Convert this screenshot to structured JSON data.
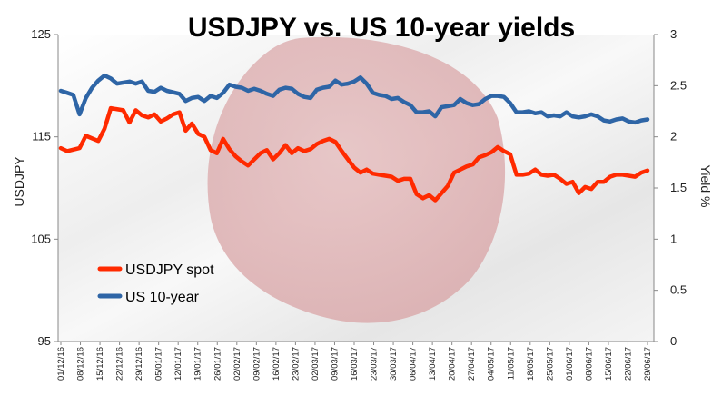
{
  "chart_data": {
    "type": "line",
    "title": "USDJPY vs. US 10-year yields",
    "ylabel_left": "USDJPY",
    "ylabel_right": "Yield %",
    "ylim_left": [
      95,
      125
    ],
    "ylim_right": [
      0,
      3
    ],
    "yticks_left": [
      "95",
      "105",
      "115",
      "125"
    ],
    "yticks_right": [
      "0",
      "0.5",
      "1",
      "1.5",
      "2",
      "2.5",
      "3"
    ],
    "x_tick_labels": [
      "01/12/16",
      "08/12/16",
      "15/12/16",
      "22/12/16",
      "29/12/16",
      "05/01/17",
      "12/01/17",
      "19/01/17",
      "26/01/17",
      "02/02/17",
      "09/02/17",
      "16/02/17",
      "23/02/17",
      "02/03/17",
      "09/03/17",
      "16/03/17",
      "23/03/17",
      "30/03/17",
      "06/04/17",
      "13/04/17",
      "20/04/17",
      "27/04/17",
      "04/05/17",
      "11/05/17",
      "18/05/17",
      "25/05/17",
      "01/06/17",
      "08/06/17",
      "15/06/17",
      "22/06/17",
      "29/06/17"
    ],
    "legend_position": "bottom-left",
    "grid": false,
    "series": [
      {
        "name": "USDJPY spot",
        "axis": "left",
        "color": "#ff2a00",
        "points": [
          [
            0,
            113.9
          ],
          [
            1,
            113.6
          ],
          [
            3,
            113.9
          ],
          [
            4,
            115.1
          ],
          [
            6,
            114.6
          ],
          [
            7,
            115.8
          ],
          [
            8,
            117.8
          ],
          [
            10,
            117.6
          ],
          [
            11,
            116.4
          ],
          [
            12,
            117.6
          ],
          [
            13,
            117.1
          ],
          [
            14,
            116.9
          ],
          [
            15,
            117.2
          ],
          [
            16,
            116.5
          ],
          [
            17,
            116.8
          ],
          [
            18,
            117.2
          ],
          [
            19,
            117.4
          ],
          [
            20,
            115.6
          ],
          [
            21,
            116.3
          ],
          [
            22,
            115.3
          ],
          [
            23,
            115.0
          ],
          [
            24,
            113.7
          ],
          [
            25,
            113.4
          ],
          [
            26,
            114.8
          ],
          [
            27,
            113.8
          ],
          [
            28,
            113.1
          ],
          [
            29,
            112.6
          ],
          [
            30,
            112.2
          ],
          [
            32,
            113.4
          ],
          [
            33,
            113.7
          ],
          [
            34,
            112.8
          ],
          [
            35,
            113.4
          ],
          [
            36,
            114.2
          ],
          [
            37,
            113.4
          ],
          [
            38,
            113.9
          ],
          [
            39,
            113.6
          ],
          [
            40,
            113.8
          ],
          [
            41,
            114.3
          ],
          [
            42,
            114.6
          ],
          [
            43,
            114.8
          ],
          [
            44,
            114.5
          ],
          [
            45,
            113.6
          ],
          [
            46,
            112.8
          ],
          [
            47,
            112.0
          ],
          [
            48,
            111.5
          ],
          [
            49,
            111.8
          ],
          [
            50,
            111.4
          ],
          [
            51,
            111.3
          ],
          [
            53,
            111.1
          ],
          [
            54,
            110.7
          ],
          [
            55,
            110.9
          ],
          [
            56,
            110.9
          ],
          [
            57,
            109.4
          ],
          [
            58,
            109.0
          ],
          [
            59,
            109.3
          ],
          [
            60,
            108.8
          ],
          [
            61,
            109.5
          ],
          [
            62,
            110.2
          ],
          [
            63,
            111.5
          ],
          [
            64,
            111.8
          ],
          [
            65,
            112.1
          ],
          [
            66,
            112.3
          ],
          [
            67,
            113.0
          ],
          [
            68,
            113.2
          ],
          [
            69,
            113.5
          ],
          [
            70,
            114.0
          ],
          [
            71,
            113.6
          ],
          [
            72,
            113.3
          ],
          [
            73,
            111.3
          ],
          [
            74,
            111.3
          ],
          [
            75,
            111.4
          ],
          [
            76,
            111.8
          ],
          [
            77,
            111.3
          ],
          [
            78,
            111.2
          ],
          [
            79,
            111.3
          ],
          [
            80,
            110.9
          ],
          [
            81,
            110.4
          ],
          [
            82,
            110.6
          ],
          [
            83,
            109.5
          ],
          [
            84,
            110.1
          ],
          [
            85,
            109.9
          ],
          [
            86,
            110.6
          ],
          [
            87,
            110.6
          ],
          [
            88,
            111.1
          ],
          [
            89,
            111.3
          ],
          [
            90,
            111.3
          ],
          [
            92,
            111.1
          ],
          [
            93,
            111.5
          ],
          [
            94,
            111.7
          ]
        ]
      },
      {
        "name": "US 10-year",
        "axis": "right",
        "color": "#2e65a6",
        "points": [
          [
            0,
            2.45
          ],
          [
            1,
            2.43
          ],
          [
            2,
            2.41
          ],
          [
            3,
            2.22
          ],
          [
            4,
            2.38
          ],
          [
            5,
            2.48
          ],
          [
            6,
            2.55
          ],
          [
            7,
            2.6
          ],
          [
            8,
            2.57
          ],
          [
            9,
            2.52
          ],
          [
            11,
            2.54
          ],
          [
            12,
            2.52
          ],
          [
            13,
            2.54
          ],
          [
            14,
            2.45
          ],
          [
            15,
            2.44
          ],
          [
            16,
            2.48
          ],
          [
            17,
            2.45
          ],
          [
            19,
            2.42
          ],
          [
            20,
            2.35
          ],
          [
            21,
            2.38
          ],
          [
            22,
            2.39
          ],
          [
            23,
            2.35
          ],
          [
            24,
            2.4
          ],
          [
            25,
            2.38
          ],
          [
            26,
            2.43
          ],
          [
            27,
            2.51
          ],
          [
            28,
            2.49
          ],
          [
            29,
            2.48
          ],
          [
            30,
            2.45
          ],
          [
            31,
            2.47
          ],
          [
            32,
            2.45
          ],
          [
            33,
            2.42
          ],
          [
            34,
            2.4
          ],
          [
            35,
            2.46
          ],
          [
            36,
            2.48
          ],
          [
            37,
            2.47
          ],
          [
            38,
            2.42
          ],
          [
            39,
            2.39
          ],
          [
            40,
            2.38
          ],
          [
            41,
            2.46
          ],
          [
            42,
            2.48
          ],
          [
            43,
            2.49
          ],
          [
            44,
            2.55
          ],
          [
            45,
            2.51
          ],
          [
            46,
            2.52
          ],
          [
            47,
            2.54
          ],
          [
            48,
            2.58
          ],
          [
            49,
            2.52
          ],
          [
            50,
            2.43
          ],
          [
            51,
            2.41
          ],
          [
            52,
            2.4
          ],
          [
            53,
            2.37
          ],
          [
            54,
            2.38
          ],
          [
            55,
            2.34
          ],
          [
            56,
            2.31
          ],
          [
            57,
            2.24
          ],
          [
            58,
            2.24
          ],
          [
            59,
            2.25
          ],
          [
            60,
            2.2
          ],
          [
            61,
            2.29
          ],
          [
            62,
            2.3
          ],
          [
            63,
            2.31
          ],
          [
            64,
            2.37
          ],
          [
            65,
            2.33
          ],
          [
            66,
            2.31
          ],
          [
            67,
            2.32
          ],
          [
            68,
            2.37
          ],
          [
            69,
            2.4
          ],
          [
            70,
            2.4
          ],
          [
            71,
            2.39
          ],
          [
            72,
            2.33
          ],
          [
            73,
            2.24
          ],
          [
            74,
            2.24
          ],
          [
            75,
            2.25
          ],
          [
            76,
            2.23
          ],
          [
            77,
            2.24
          ],
          [
            78,
            2.2
          ],
          [
            79,
            2.21
          ],
          [
            80,
            2.2
          ],
          [
            81,
            2.24
          ],
          [
            82,
            2.2
          ],
          [
            83,
            2.19
          ],
          [
            84,
            2.2
          ],
          [
            85,
            2.22
          ],
          [
            86,
            2.2
          ],
          [
            87,
            2.16
          ],
          [
            88,
            2.15
          ],
          [
            89,
            2.17
          ],
          [
            90,
            2.18
          ],
          [
            91,
            2.15
          ],
          [
            92,
            2.14
          ],
          [
            93,
            2.16
          ],
          [
            94,
            2.17
          ]
        ]
      }
    ]
  }
}
